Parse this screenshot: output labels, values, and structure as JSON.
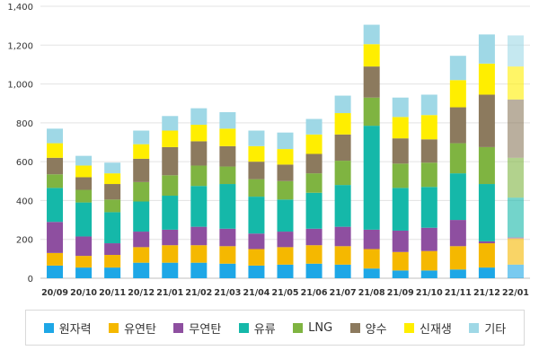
{
  "chart_data": {
    "type": "bar",
    "stacked": true,
    "categories": [
      "20/09",
      "20/10",
      "20/11",
      "20/12",
      "21/01",
      "21/02",
      "21/03",
      "21/04",
      "21/05",
      "21/06",
      "21/07",
      "21/08",
      "21/09",
      "21/10",
      "21/11",
      "21/12",
      "22/01"
    ],
    "ylim": [
      0,
      1400
    ],
    "yticks": [
      "0",
      "200",
      "400",
      "600",
      "800",
      "1,000",
      "1,200",
      "1,400"
    ],
    "grid": true,
    "legend_position": "bottom",
    "series": [
      {
        "name": "원자력",
        "color": "#1ea7e6",
        "values": [
          65,
          55,
          55,
          80,
          80,
          80,
          75,
          65,
          70,
          75,
          70,
          50,
          40,
          40,
          45,
          55,
          70
        ]
      },
      {
        "name": "유연탄",
        "color": "#f5b800",
        "values": [
          65,
          60,
          65,
          80,
          90,
          90,
          90,
          85,
          90,
          95,
          95,
          100,
          95,
          100,
          120,
          125,
          135
        ]
      },
      {
        "name": "무연탄",
        "color": "#8e4fa0",
        "values": [
          160,
          100,
          60,
          80,
          80,
          95,
          90,
          80,
          80,
          85,
          100,
          100,
          110,
          120,
          135,
          10,
          5
        ]
      },
      {
        "name": "유류",
        "color": "#15b8a9",
        "values": [
          175,
          175,
          160,
          155,
          175,
          210,
          230,
          190,
          165,
          185,
          215,
          535,
          220,
          210,
          240,
          295,
          205
        ]
      },
      {
        "name": "LNG",
        "color": "#7fb441",
        "values": [
          70,
          65,
          65,
          100,
          105,
          105,
          90,
          90,
          95,
          100,
          125,
          145,
          125,
          125,
          155,
          190,
          205
        ]
      },
      {
        "name": "양수",
        "color": "#8c7a5e",
        "values": [
          85,
          65,
          80,
          120,
          145,
          125,
          105,
          90,
          85,
          100,
          135,
          160,
          130,
          120,
          185,
          270,
          300
        ]
      },
      {
        "name": "신재생",
        "color": "#ffee00",
        "values": [
          75,
          60,
          55,
          75,
          85,
          85,
          90,
          80,
          80,
          100,
          110,
          115,
          110,
          125,
          140,
          160,
          170
        ]
      },
      {
        "name": "기타",
        "color": "#9fd8e6",
        "values": [
          75,
          50,
          55,
          70,
          75,
          85,
          85,
          80,
          85,
          80,
          90,
          100,
          100,
          105,
          125,
          150,
          160
        ]
      }
    ],
    "faded_categories": [
      "22/01"
    ]
  }
}
